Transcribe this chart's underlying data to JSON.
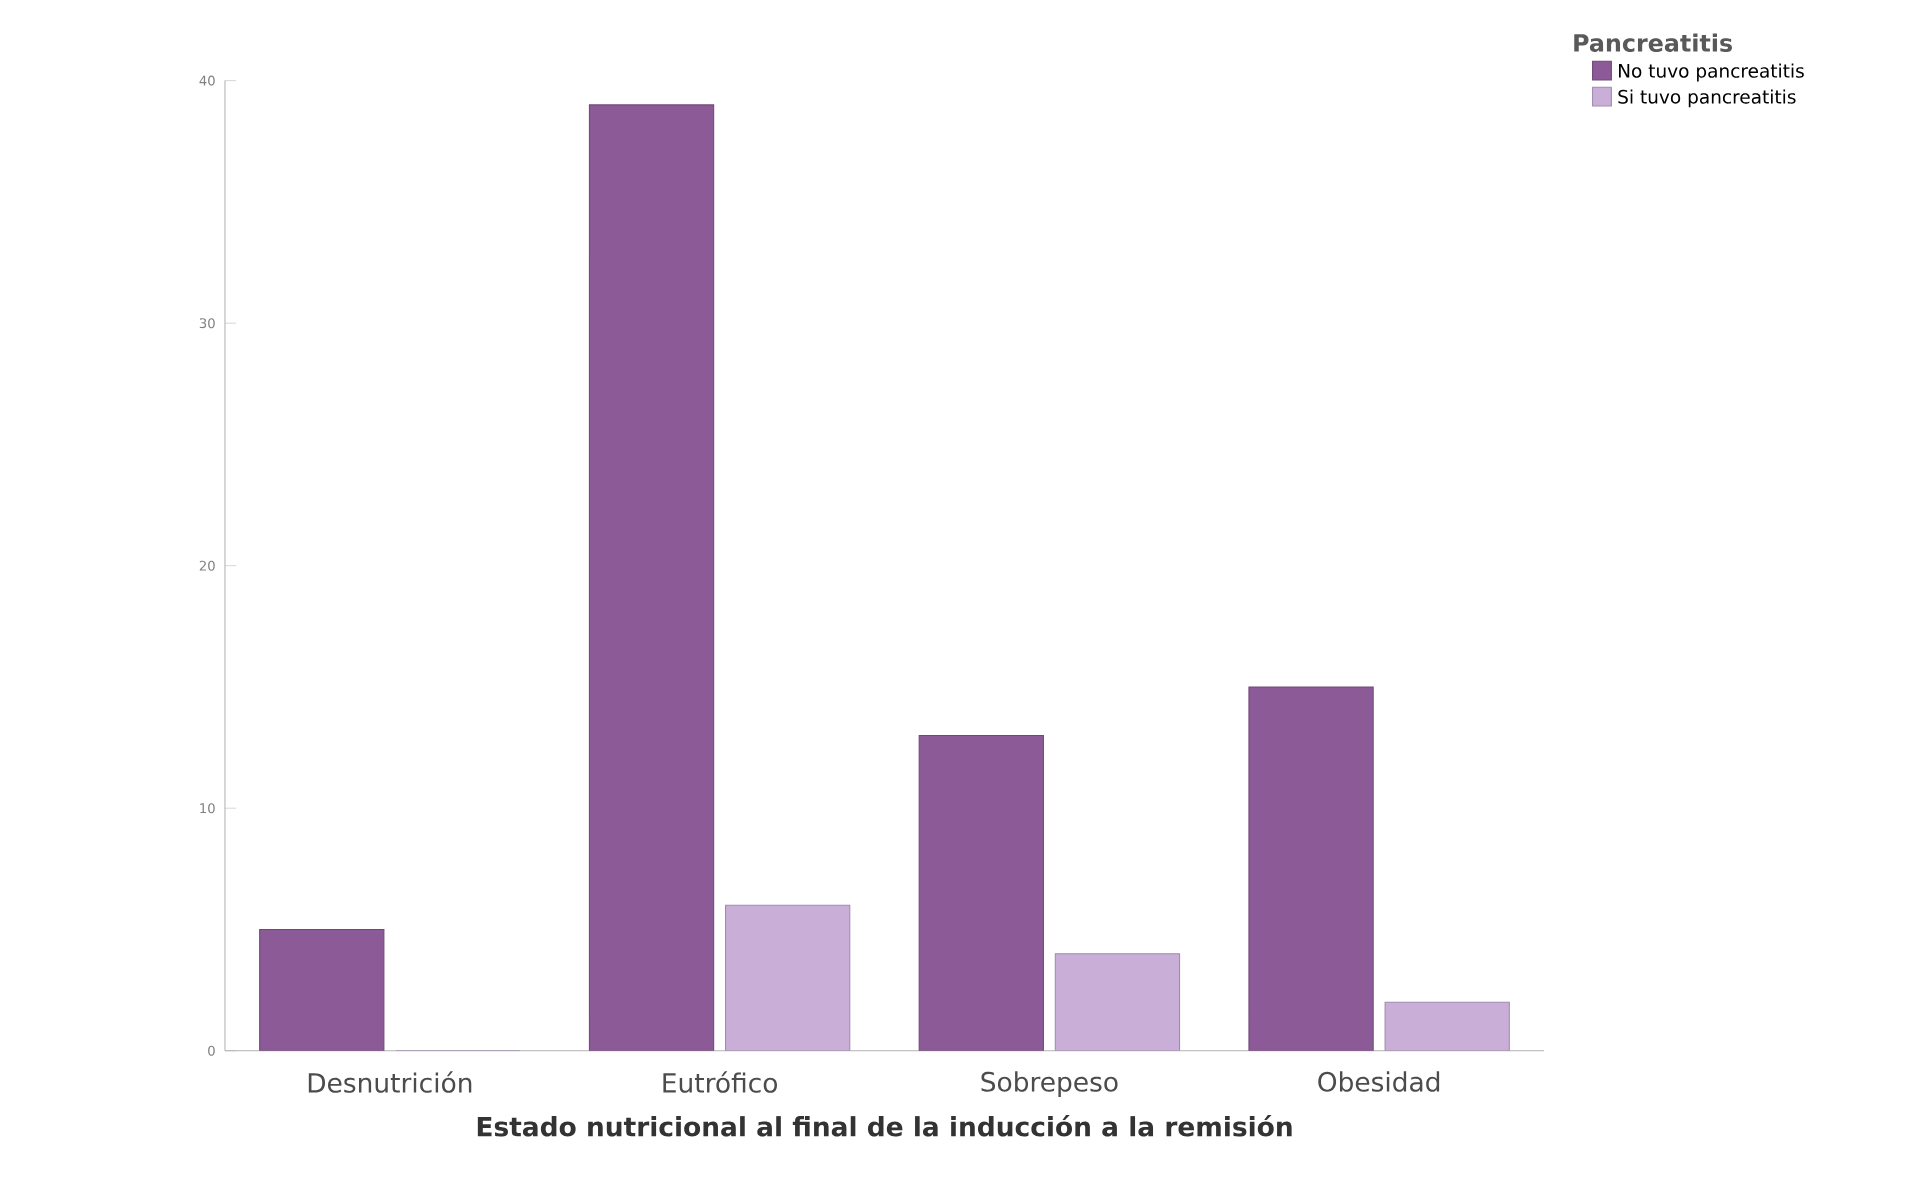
{
  "chart_data": {
    "type": "bar",
    "xlabel": "Estado nutricional al final de la inducción a la remisión",
    "legend_title": "Pancreatitis",
    "categories": [
      "Desnutrición",
      "Eutrófico",
      "Sobrepeso",
      "Obesidad"
    ],
    "series": [
      {
        "name": "No tuvo pancreatitis",
        "color": "#8c5a96",
        "values": [
          5,
          39,
          13,
          15
        ]
      },
      {
        "name": "Si tuvo pancreatitis",
        "color": "#c9aed8",
        "values": [
          0,
          6,
          4,
          2
        ]
      }
    ],
    "ylim": [
      0,
      40
    ],
    "yticks": [
      0,
      10,
      20,
      30,
      40
    ],
    "legend": "top right",
    "grid": false
  }
}
